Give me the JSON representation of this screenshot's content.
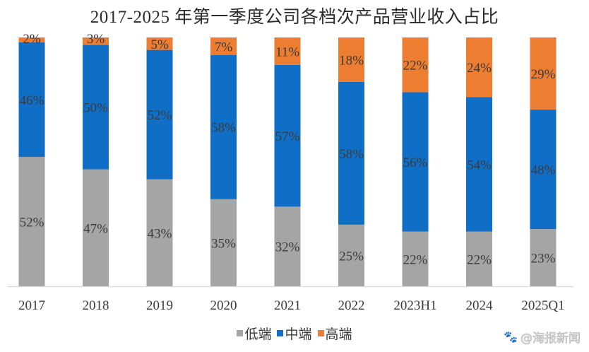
{
  "chart_data": {
    "type": "bar",
    "stacked": true,
    "title": "2017-2025 年第一季度公司各档次产品营业收入占比",
    "xlabel": "",
    "ylabel": "",
    "ylim": [
      0,
      100
    ],
    "grid": false,
    "legend_position": "bottom",
    "categories": [
      "2017",
      "2018",
      "2019",
      "2020",
      "2021",
      "2022",
      "2023H1",
      "2024",
      "2025Q1"
    ],
    "series": [
      {
        "name": "低端",
        "color": "#a5a5a5",
        "values": [
          52,
          47,
          43,
          35,
          32,
          25,
          22,
          22,
          23
        ]
      },
      {
        "name": "中端",
        "color": "#0f6fc6",
        "values": [
          46,
          50,
          52,
          58,
          57,
          58,
          56,
          54,
          48
        ]
      },
      {
        "name": "高端",
        "color": "#ed7d31",
        "values": [
          2,
          3,
          5,
          7,
          11,
          18,
          22,
          24,
          29
        ]
      }
    ],
    "value_format": "{v}%"
  },
  "watermark": {
    "icon": "baidu-paw-icon",
    "text": "@海报新闻"
  }
}
